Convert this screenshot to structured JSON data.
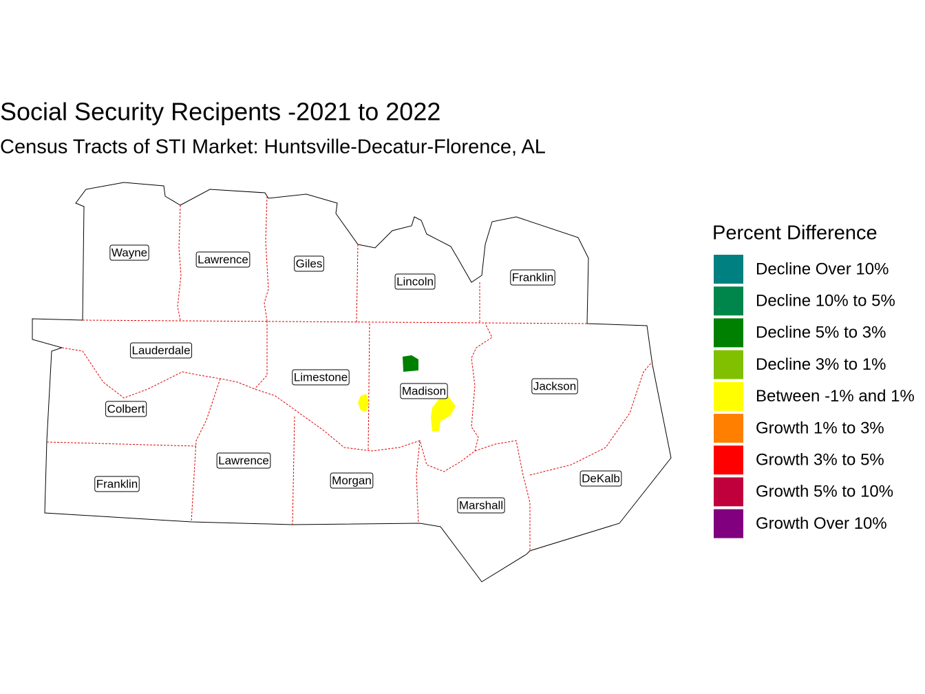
{
  "title": "Social Security Recipents -2021 to 2022",
  "subtitle": "Census Tracts of STI Market: Huntsville-Decatur-Florence, AL",
  "legend": {
    "title": "Percent Difference",
    "items": [
      {
        "label": "Decline Over 10%",
        "color": "#008080"
      },
      {
        "label": "Decline 10% to 5%",
        "color": "#00854a"
      },
      {
        "label": "Decline 5% to 3%",
        "color": "#008000"
      },
      {
        "label": "Decline 3% to 1%",
        "color": "#80c000"
      },
      {
        "label": "Between -1% and 1%",
        "color": "#ffff00"
      },
      {
        "label": "Growth 1% to 3%",
        "color": "#ff8000"
      },
      {
        "label": "Growth 3% to 5%",
        "color": "#ff0000"
      },
      {
        "label": "Growth 5% to 10%",
        "color": "#c0003c"
      },
      {
        "label": "Growth Over 10%",
        "color": "#800080"
      }
    ]
  },
  "counties": [
    "Wayne",
    "Lawrence",
    "Giles",
    "Lincoln",
    "Franklin",
    "Lauderdale",
    "Limestone",
    "Madison",
    "Jackson",
    "Colbert",
    "Lawrence",
    "Franklin",
    "Morgan",
    "Marshall",
    "DeKalb"
  ]
}
